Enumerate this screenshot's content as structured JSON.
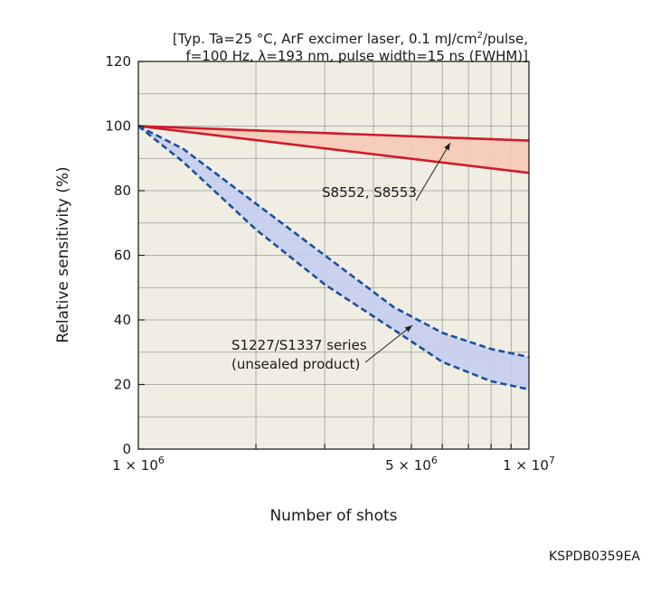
{
  "chart_data": {
    "type": "area",
    "title_line1_pre": "[Typ. Ta=25 °C, ArF excimer laser, 0.1 mJ/cm",
    "title_line1_sup": "2",
    "title_line1_post": "/pulse,",
    "title_line2": "f=100 Hz, λ=193 nm, pulse width=15 ns (FWHM)]",
    "xlabel": "Number of shots",
    "ylabel": "Relative sensitivity (%)",
    "x_scale": "log",
    "xlim": [
      1000000,
      10000000
    ],
    "ylim": [
      0,
      120
    ],
    "grid": true,
    "y_ticks": [
      {
        "value": 0,
        "label": "0"
      },
      {
        "value": 20,
        "label": "20"
      },
      {
        "value": 40,
        "label": "40"
      },
      {
        "value": 60,
        "label": "60"
      },
      {
        "value": 80,
        "label": "80"
      },
      {
        "value": 100,
        "label": "100"
      },
      {
        "value": 120,
        "label": "120"
      }
    ],
    "x_ticks": [
      {
        "value": 1000000,
        "base": "1 × 10",
        "exp": "6"
      },
      {
        "value": 5000000,
        "base": "5 × 10",
        "exp": "6"
      },
      {
        "value": 10000000,
        "base": "1 × 10",
        "exp": "7"
      }
    ],
    "bands": [
      {
        "name": "S8552, S8553",
        "label_lines": [
          "S8552, S8553"
        ],
        "style": "solid",
        "line_color": "#d11a2a",
        "fill_color": "#f6c9b6",
        "upper": {
          "x": [
            1000000,
            10000000
          ],
          "y": [
            100,
            95.5
          ]
        },
        "lower": {
          "x": [
            1000000,
            10000000
          ],
          "y": [
            100,
            85.5
          ]
        }
      },
      {
        "name": "S1227/S1337 series (unsealed product)",
        "label_lines": [
          "S1227/S1337 series",
          "(unsealed product)"
        ],
        "style": "dashed",
        "line_color": "#1c4f9c",
        "fill_color": "#c5cdee",
        "upper": {
          "x": [
            1000000,
            1300000,
            2000000,
            3000000,
            4500000,
            6000000,
            8000000,
            10000000
          ],
          "y": [
            100,
            93,
            76,
            60,
            44,
            36,
            31,
            28.5
          ]
        },
        "lower": {
          "x": [
            1000000,
            1300000,
            2000000,
            3000000,
            4500000,
            6000000,
            8000000,
            10000000
          ],
          "y": [
            100,
            89,
            68,
            51,
            37,
            27,
            21,
            18.5
          ]
        }
      }
    ]
  },
  "figure_code": "KSPDB0359EA"
}
